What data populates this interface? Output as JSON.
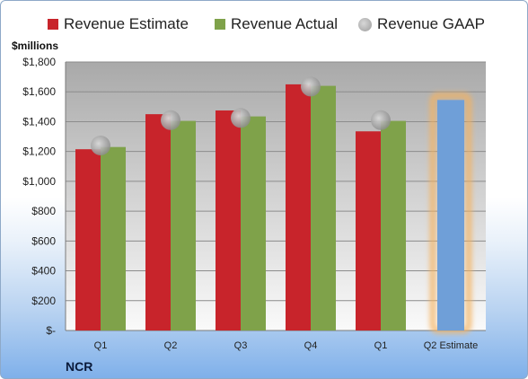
{
  "chart_data": {
    "type": "bar",
    "categories": [
      "Q1",
      "Q2",
      "Q3",
      "Q4",
      "Q1",
      "Q2 Estimate"
    ],
    "series": [
      {
        "name": "Revenue Estimate",
        "color": "#c8242b",
        "values": [
          1215,
          1450,
          1475,
          1650,
          1335,
          null
        ]
      },
      {
        "name": "Revenue Actual",
        "color": "#7fa24a",
        "values": [
          1230,
          1405,
          1435,
          1640,
          1405,
          null
        ]
      },
      {
        "name": "Revenue GAAP",
        "color": "#aaaaaa",
        "values": [
          1240,
          1410,
          1425,
          1635,
          1410,
          null
        ]
      }
    ],
    "estimate": {
      "category": "Q2 Estimate",
      "value": 1545,
      "color": "#6f9fd8",
      "glow": "#f4b25f"
    },
    "ylabel": "$millions",
    "yticks": [
      "$-",
      "$200",
      "$400",
      "$600",
      "$800",
      "$1,000",
      "$1,200",
      "$1,400",
      "$1,600",
      "$1,800"
    ],
    "ylim": [
      0,
      1800
    ],
    "grid": true,
    "legend_position": "top"
  },
  "company": "NCR"
}
